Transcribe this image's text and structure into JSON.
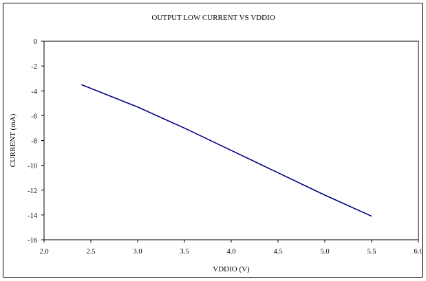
{
  "chart_data": {
    "type": "line",
    "title": "OUTPUT LOW CURRENT VS VDDIO",
    "xlabel": "VDDIO (V)",
    "ylabel": "CURRENT (mA)",
    "xlim": [
      2.0,
      6.0
    ],
    "ylim": [
      -16,
      0
    ],
    "x_ticks": [
      "2.0",
      "2.5",
      "3.0",
      "3.5",
      "4.0",
      "4.5",
      "5.0",
      "5.5",
      "6.0"
    ],
    "y_ticks": [
      "0",
      "-2",
      "-4",
      "-6",
      "-8",
      "-10",
      "-12",
      "-14",
      "-16"
    ],
    "grid": false,
    "legend": "none",
    "series": [
      {
        "color": "#000080",
        "x": [
          2.4,
          3.0,
          3.5,
          4.0,
          4.5,
          5.0,
          5.5
        ],
        "y": [
          -3.5,
          -5.3,
          -7.0,
          -8.8,
          -10.6,
          -12.4,
          -14.1
        ]
      }
    ]
  }
}
